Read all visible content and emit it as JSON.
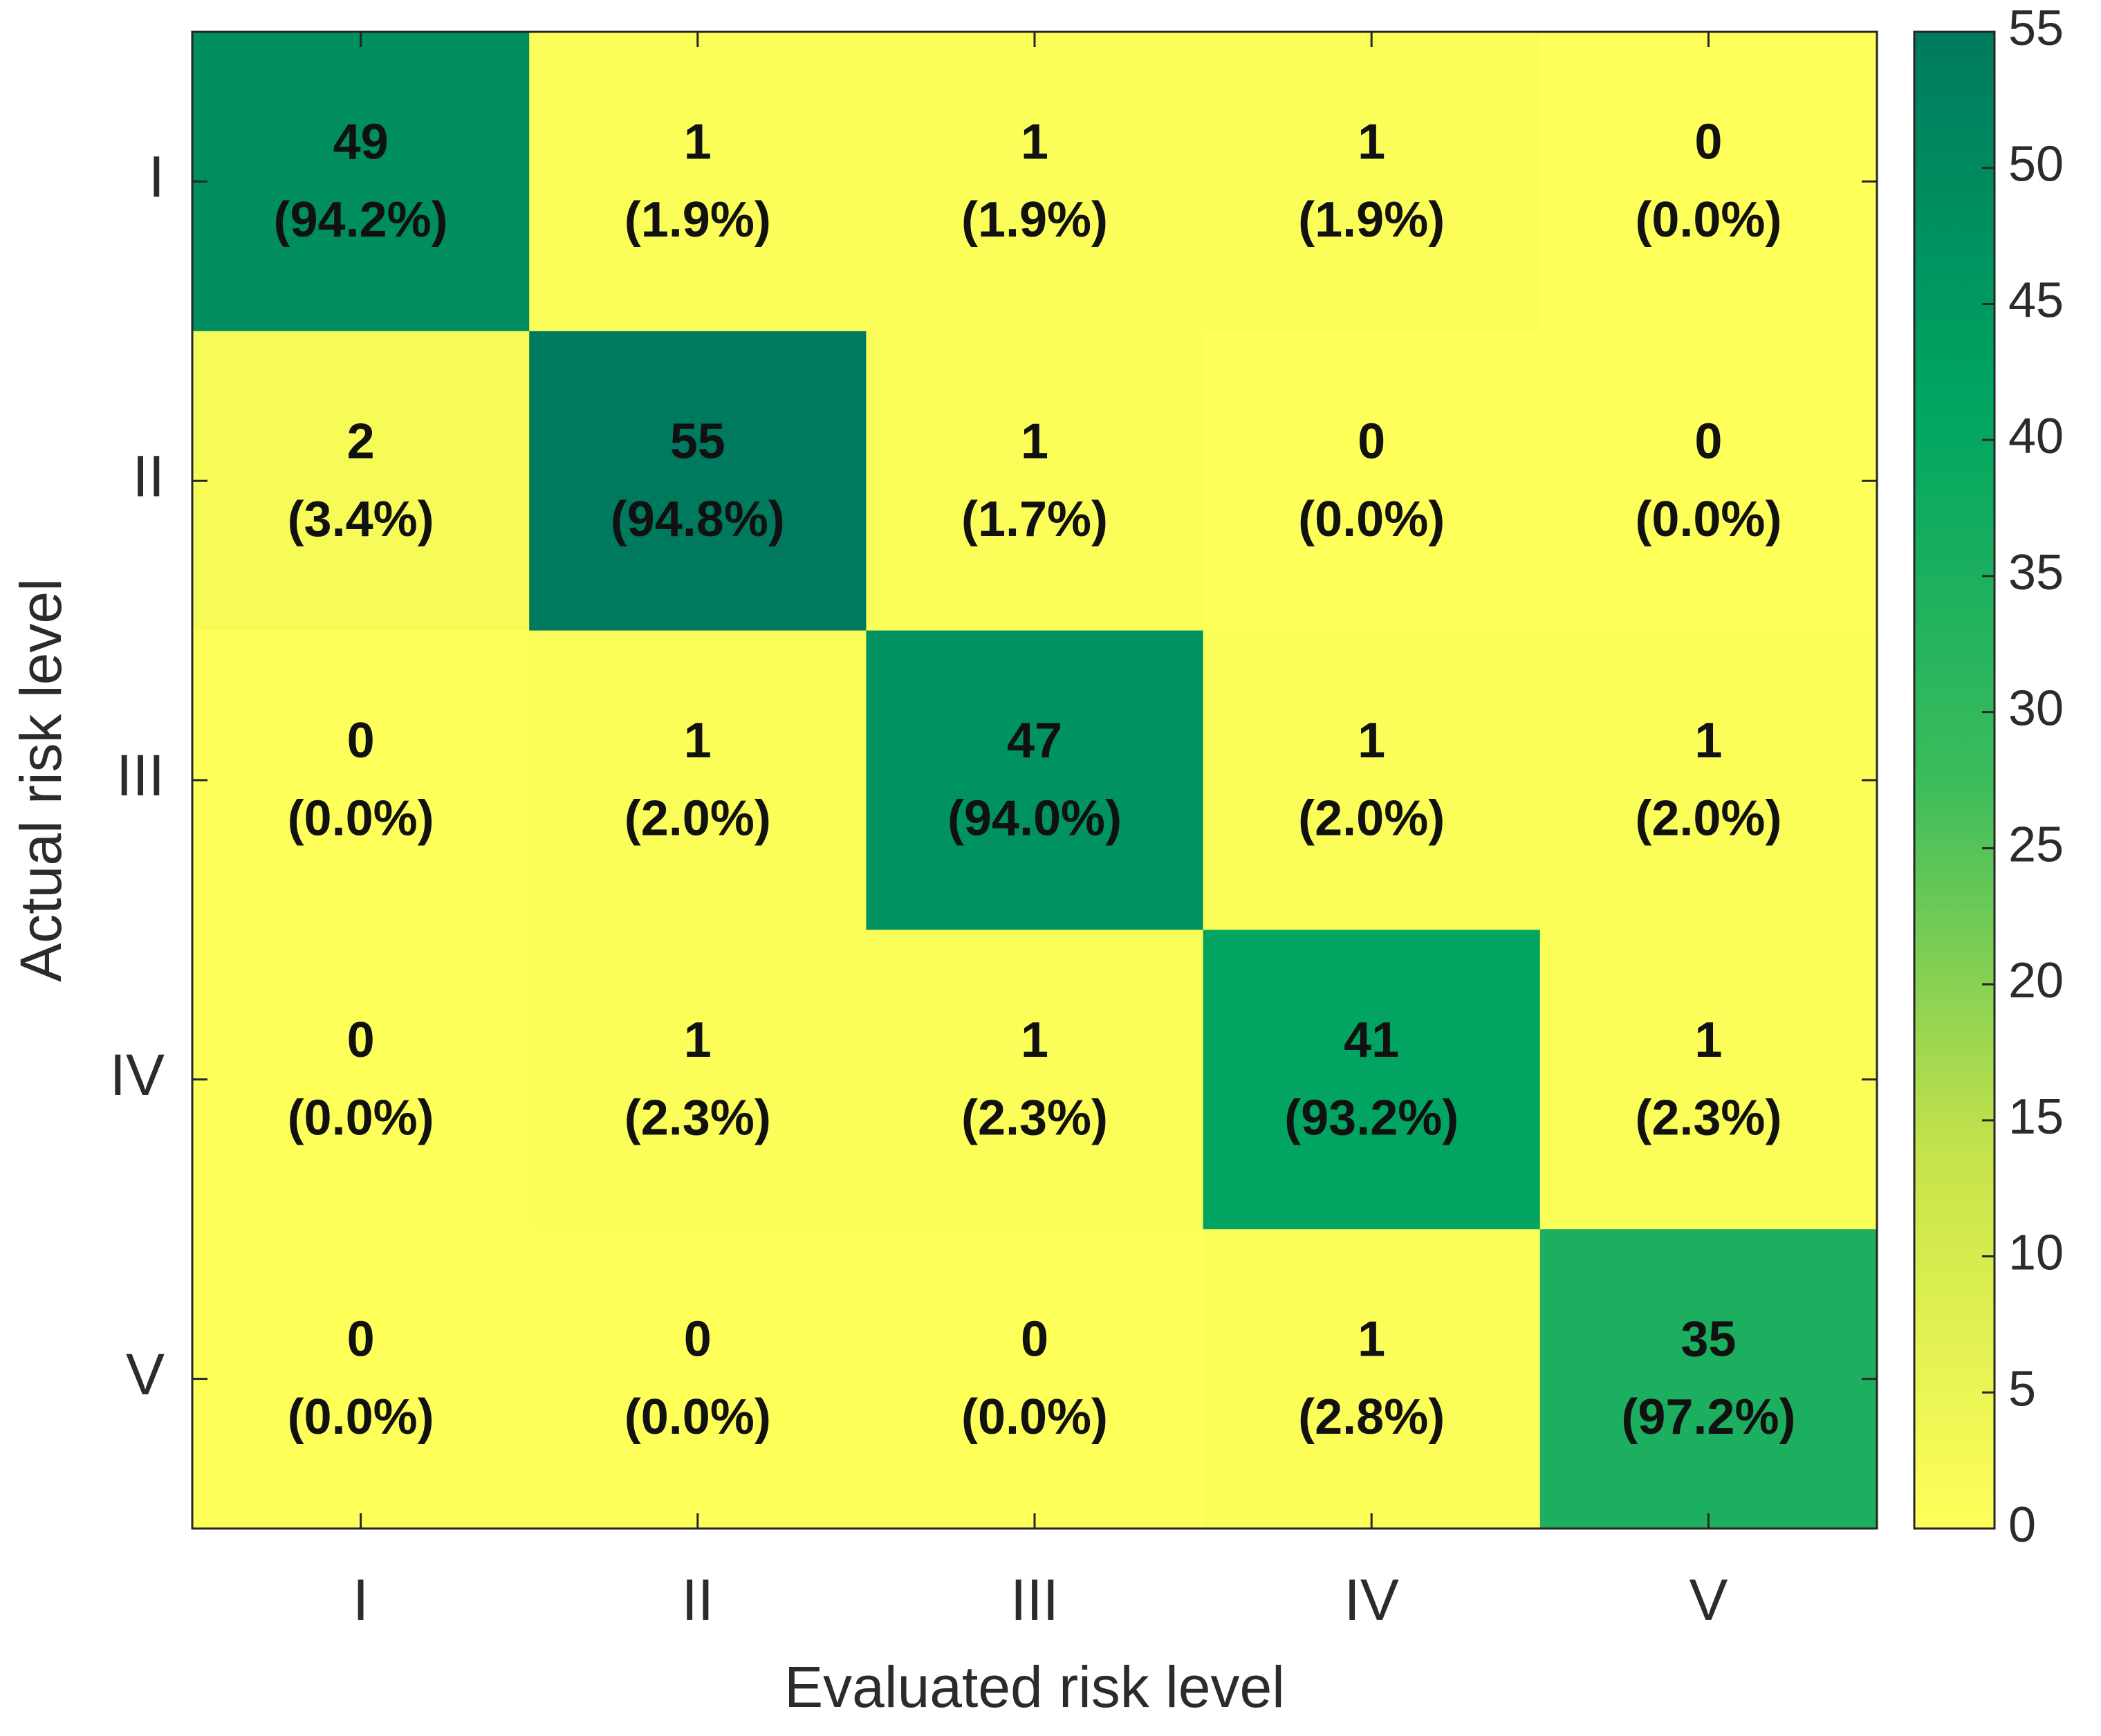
{
  "chart_data": {
    "type": "heatmap",
    "title": "",
    "xlabel": "Evaluated risk level",
    "ylabel": "Actual risk level",
    "x_categories": [
      "I",
      "II",
      "III",
      "IV",
      "V"
    ],
    "y_categories": [
      "I",
      "II",
      "III",
      "IV",
      "V"
    ],
    "values": [
      [
        49,
        1,
        1,
        1,
        0
      ],
      [
        2,
        55,
        1,
        0,
        0
      ],
      [
        0,
        1,
        47,
        1,
        1
      ],
      [
        0,
        1,
        1,
        41,
        1
      ],
      [
        0,
        0,
        0,
        1,
        35
      ]
    ],
    "percent_labels": [
      [
        "(94.2%)",
        "(1.9%)",
        "(1.9%)",
        "(1.9%)",
        "(0.0%)"
      ],
      [
        "(3.4%)",
        "(94.8%)",
        "(1.7%)",
        "(0.0%)",
        "(0.0%)"
      ],
      [
        "(0.0%)",
        "(2.0%)",
        "(94.0%)",
        "(2.0%)",
        "(2.0%)"
      ],
      [
        "(0.0%)",
        "(2.3%)",
        "(2.3%)",
        "(93.2%)",
        "(2.3%)"
      ],
      [
        "(0.0%)",
        "(0.0%)",
        "(0.0%)",
        "(2.8%)",
        "(97.2%)"
      ]
    ],
    "colorbar": {
      "range": [
        0,
        55
      ],
      "ticks": [
        0,
        5,
        10,
        15,
        20,
        25,
        30,
        35,
        40,
        45,
        50,
        55
      ],
      "colors": [
        "#ffff5a",
        "#c6e34b",
        "#3cbc5c",
        "#00a561",
        "#007a5e"
      ]
    },
    "grid": false
  }
}
